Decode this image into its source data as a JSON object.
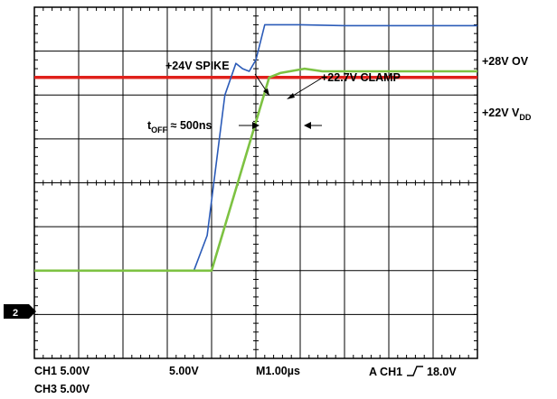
{
  "chart_data": {
    "type": "line",
    "title": "",
    "grid": true,
    "x_div_time": "1.00µs",
    "y_div_volts": 5,
    "y_ground_div": 2,
    "series": [
      {
        "channel": "CH1",
        "color": "#2b5bb8",
        "x": [
          0.0,
          3.6,
          3.9,
          4.1,
          4.3,
          4.55,
          4.7,
          4.85,
          5.0,
          5.2,
          6.0,
          7.0,
          8.0,
          9.0,
          10.0
        ],
        "y": [
          0.0,
          0.0,
          4.0,
          12.0,
          20.0,
          23.6,
          23.0,
          22.7,
          24.0,
          28.0,
          28.0,
          27.9,
          27.9,
          27.9,
          27.9
        ]
      },
      {
        "channel": "CH3",
        "color": "#7dc242",
        "x": [
          0.0,
          1.5,
          3.95,
          4.0,
          5.3,
          5.55,
          6.1,
          6.5,
          10.0
        ],
        "y": [
          0.0,
          0.0,
          0.0,
          0.0,
          22.0,
          22.5,
          23.0,
          22.7,
          22.7
        ]
      }
    ],
    "reference_line": {
      "label": "+22V V",
      "subscript": "DD",
      "value": 22.0,
      "color": "#e0201b"
    },
    "annotations": {
      "spike": "+24V SPIKE",
      "clamp": "+22.7V CLAMP",
      "toff_main": "t",
      "toff_sub": "OFF",
      "toff_tail": " ≈ 500ns",
      "ov": "+28V OV"
    }
  },
  "ground_marker": "2",
  "footer": {
    "ch1": "CH1  5.00V",
    "ch2": "5.00V",
    "timebase": "M1.00µs",
    "trigger_prefix": "A  CH1",
    "trigger_level": "18.0V",
    "ch3": "CH3  5.00V"
  }
}
